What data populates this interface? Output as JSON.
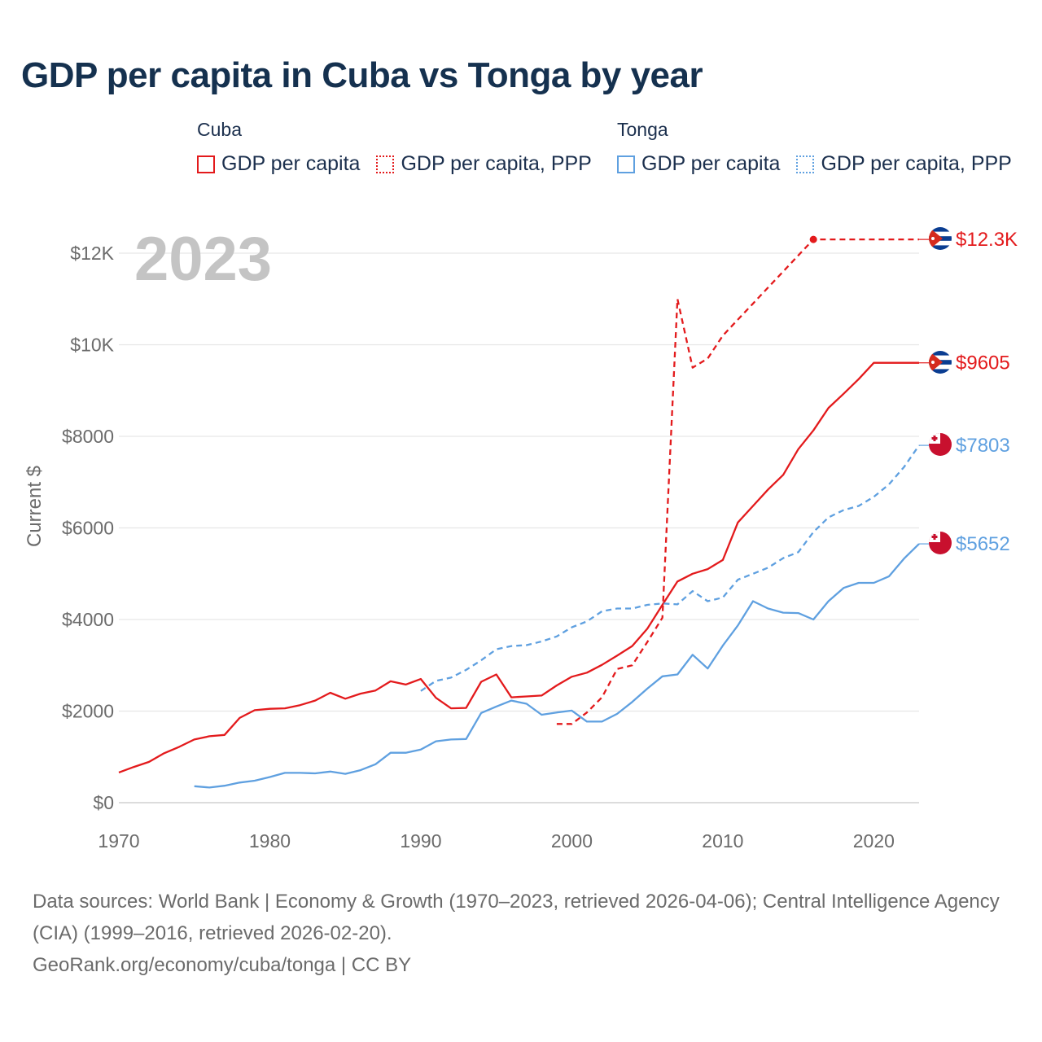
{
  "title": "GDP per capita in Cuba vs Tonga by year",
  "legend": {
    "groups": [
      {
        "name": "Cuba",
        "color": "#e31a1c",
        "items": [
          "GDP per capita",
          "GDP per capita, PPP"
        ]
      },
      {
        "name": "Tonga",
        "color": "#5fa0e0",
        "items": [
          "GDP per capita",
          "GDP per capita, PPP"
        ]
      }
    ]
  },
  "chart_data": {
    "type": "line",
    "title": "GDP per capita in Cuba vs Tonga by year",
    "xlabel": "",
    "ylabel": "Current $",
    "xlim": [
      1970,
      2023
    ],
    "ylim": [
      0,
      12500
    ],
    "x_ticks": [
      1970,
      1980,
      1990,
      2000,
      2010,
      2020
    ],
    "y_ticks": [
      {
        "value": 0,
        "label": "$0"
      },
      {
        "value": 2000,
        "label": "$2000"
      },
      {
        "value": 4000,
        "label": "$4000"
      },
      {
        "value": 6000,
        "label": "$6000"
      },
      {
        "value": 8000,
        "label": "$8000"
      },
      {
        "value": 10000,
        "label": "$10K"
      },
      {
        "value": 12000,
        "label": "$12K"
      }
    ],
    "year_watermark": "2023",
    "series": [
      {
        "name": "Cuba GDP per capita",
        "country": "Cuba",
        "color": "#e31a1c",
        "dashed": false,
        "end_label": "$9605",
        "end_value": 9605,
        "points": [
          [
            1970,
            660
          ],
          [
            1971,
            780
          ],
          [
            1972,
            890
          ],
          [
            1973,
            1080
          ],
          [
            1974,
            1220
          ],
          [
            1975,
            1380
          ],
          [
            1976,
            1450
          ],
          [
            1977,
            1480
          ],
          [
            1978,
            1850
          ],
          [
            1979,
            2020
          ],
          [
            1980,
            2050
          ],
          [
            1981,
            2060
          ],
          [
            1982,
            2130
          ],
          [
            1983,
            2230
          ],
          [
            1984,
            2400
          ],
          [
            1985,
            2270
          ],
          [
            1986,
            2380
          ],
          [
            1987,
            2450
          ],
          [
            1988,
            2650
          ],
          [
            1989,
            2580
          ],
          [
            1990,
            2700
          ],
          [
            1991,
            2290
          ],
          [
            1992,
            2060
          ],
          [
            1993,
            2070
          ],
          [
            1994,
            2640
          ],
          [
            1995,
            2800
          ],
          [
            1996,
            2300
          ],
          [
            1997,
            2320
          ],
          [
            1998,
            2340
          ],
          [
            1999,
            2560
          ],
          [
            2000,
            2750
          ],
          [
            2001,
            2840
          ],
          [
            2002,
            3010
          ],
          [
            2003,
            3210
          ],
          [
            2004,
            3420
          ],
          [
            2005,
            3800
          ],
          [
            2006,
            4320
          ],
          [
            2007,
            4830
          ],
          [
            2008,
            5000
          ],
          [
            2009,
            5100
          ],
          [
            2010,
            5300
          ],
          [
            2011,
            6120
          ],
          [
            2012,
            6480
          ],
          [
            2013,
            6840
          ],
          [
            2014,
            7160
          ],
          [
            2015,
            7720
          ],
          [
            2016,
            8130
          ],
          [
            2017,
            8620
          ],
          [
            2018,
            8930
          ],
          [
            2019,
            9250
          ],
          [
            2020,
            9605
          ],
          [
            2021,
            9605
          ],
          [
            2022,
            9605
          ],
          [
            2023,
            9605
          ]
        ]
      },
      {
        "name": "Cuba GDP per capita, PPP",
        "country": "Cuba",
        "color": "#e31a1c",
        "dashed": true,
        "end_label": "$12.3K",
        "end_value": 12300,
        "points": [
          [
            1999,
            1720
          ],
          [
            2000,
            1720
          ],
          [
            2001,
            1970
          ],
          [
            2002,
            2300
          ],
          [
            2003,
            2920
          ],
          [
            2004,
            3000
          ],
          [
            2005,
            3510
          ],
          [
            2006,
            4040
          ],
          [
            2007,
            11000
          ],
          [
            2008,
            9500
          ],
          [
            2009,
            9700
          ],
          [
            2010,
            10200
          ],
          [
            2011,
            10550
          ],
          [
            2012,
            10900
          ],
          [
            2013,
            11250
          ],
          [
            2014,
            11600
          ],
          [
            2015,
            11950
          ],
          [
            2016,
            12300
          ],
          [
            2023,
            12300
          ]
        ]
      },
      {
        "name": "Tonga GDP per capita",
        "country": "Tonga",
        "color": "#5fa0e0",
        "dashed": false,
        "end_label": "$5652",
        "end_value": 5652,
        "points": [
          [
            1975,
            360
          ],
          [
            1976,
            330
          ],
          [
            1977,
            370
          ],
          [
            1978,
            440
          ],
          [
            1979,
            480
          ],
          [
            1980,
            560
          ],
          [
            1981,
            650
          ],
          [
            1982,
            650
          ],
          [
            1983,
            640
          ],
          [
            1984,
            680
          ],
          [
            1985,
            630
          ],
          [
            1986,
            710
          ],
          [
            1987,
            840
          ],
          [
            1988,
            1090
          ],
          [
            1989,
            1090
          ],
          [
            1990,
            1160
          ],
          [
            1991,
            1340
          ],
          [
            1992,
            1380
          ],
          [
            1993,
            1390
          ],
          [
            1994,
            1960
          ],
          [
            1995,
            2100
          ],
          [
            1996,
            2230
          ],
          [
            1997,
            2160
          ],
          [
            1998,
            1920
          ],
          [
            1999,
            1970
          ],
          [
            2000,
            2010
          ],
          [
            2001,
            1770
          ],
          [
            2002,
            1770
          ],
          [
            2003,
            1940
          ],
          [
            2004,
            2200
          ],
          [
            2005,
            2490
          ],
          [
            2006,
            2760
          ],
          [
            2007,
            2800
          ],
          [
            2008,
            3230
          ],
          [
            2009,
            2930
          ],
          [
            2010,
            3430
          ],
          [
            2011,
            3870
          ],
          [
            2012,
            4400
          ],
          [
            2013,
            4240
          ],
          [
            2014,
            4150
          ],
          [
            2015,
            4140
          ],
          [
            2016,
            4000
          ],
          [
            2017,
            4400
          ],
          [
            2018,
            4690
          ],
          [
            2019,
            4800
          ],
          [
            2020,
            4800
          ],
          [
            2021,
            4940
          ],
          [
            2022,
            5330
          ],
          [
            2023,
            5652
          ]
        ]
      },
      {
        "name": "Tonga GDP per capita, PPP",
        "country": "Tonga",
        "color": "#5fa0e0",
        "dashed": true,
        "end_label": "$7803",
        "end_value": 7803,
        "points": [
          [
            1990,
            2440
          ],
          [
            1991,
            2660
          ],
          [
            1992,
            2730
          ],
          [
            1993,
            2900
          ],
          [
            1994,
            3110
          ],
          [
            1995,
            3350
          ],
          [
            1996,
            3420
          ],
          [
            1997,
            3440
          ],
          [
            1998,
            3520
          ],
          [
            1999,
            3630
          ],
          [
            2000,
            3830
          ],
          [
            2001,
            3960
          ],
          [
            2002,
            4180
          ],
          [
            2003,
            4240
          ],
          [
            2004,
            4240
          ],
          [
            2005,
            4320
          ],
          [
            2006,
            4350
          ],
          [
            2007,
            4330
          ],
          [
            2008,
            4620
          ],
          [
            2009,
            4400
          ],
          [
            2010,
            4480
          ],
          [
            2011,
            4870
          ],
          [
            2012,
            5000
          ],
          [
            2013,
            5130
          ],
          [
            2014,
            5340
          ],
          [
            2015,
            5470
          ],
          [
            2016,
            5910
          ],
          [
            2017,
            6230
          ],
          [
            2018,
            6390
          ],
          [
            2019,
            6480
          ],
          [
            2020,
            6680
          ],
          [
            2021,
            6950
          ],
          [
            2022,
            7330
          ],
          [
            2023,
            7803
          ]
        ]
      }
    ]
  },
  "footer": {
    "sources": "Data sources: World Bank | Economy & Growth (1970–2023, retrieved 2026-04-06); Central Intelligence Agency (CIA) (1999–2016, retrieved 2026-02-20).",
    "credit": "GeoRank.org/economy/cuba/tonga | CC BY"
  }
}
